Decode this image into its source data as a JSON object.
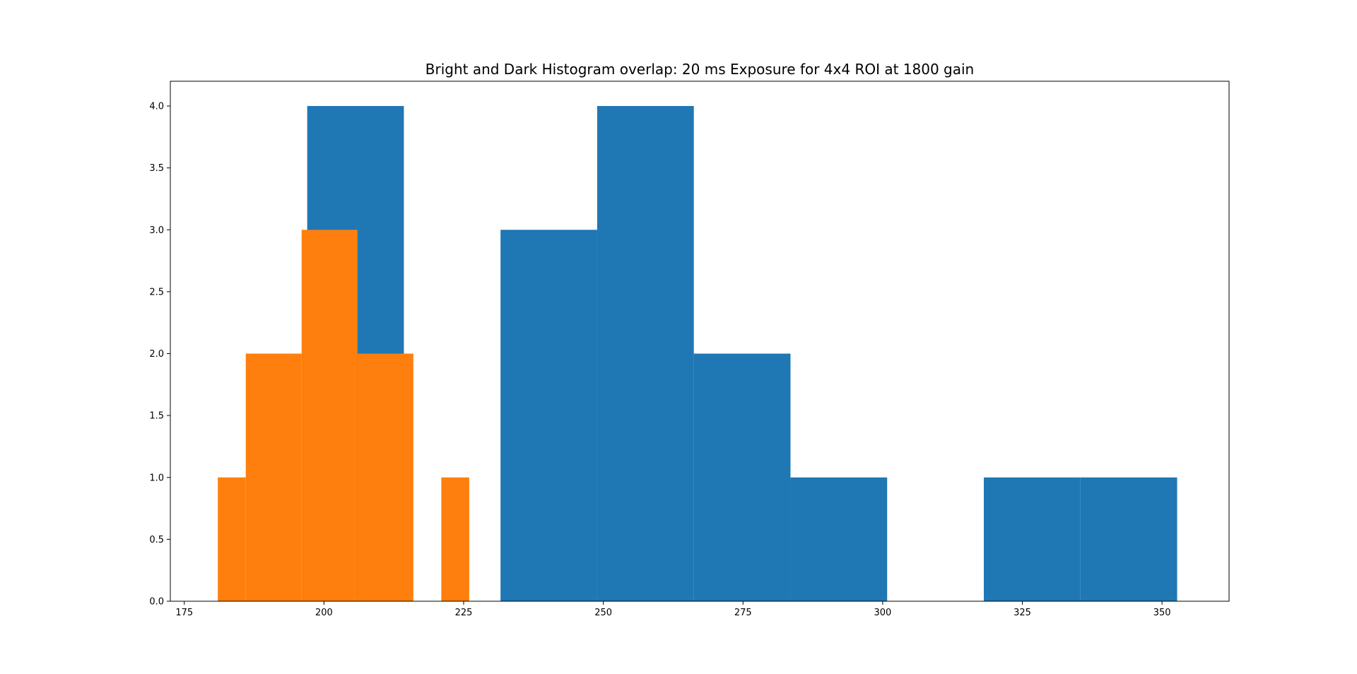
{
  "chart_data": {
    "type": "bar",
    "title": "Bright and Dark Histogram overlap: 20 ms Exposure for 4x4 ROI at 1800 gain",
    "xlabel": "",
    "ylabel": "",
    "xlim": [
      172.5,
      362
    ],
    "ylim": [
      0,
      4.2
    ],
    "grid": false,
    "xticks": [
      {
        "value": 175,
        "label": "175"
      },
      {
        "value": 200,
        "label": "200"
      },
      {
        "value": 225,
        "label": "225"
      },
      {
        "value": 250,
        "label": "250"
      },
      {
        "value": 275,
        "label": "275"
      },
      {
        "value": 300,
        "label": "300"
      },
      {
        "value": 325,
        "label": "325"
      },
      {
        "value": 350,
        "label": "350"
      }
    ],
    "yticks": [
      {
        "value": 0.0,
        "label": "0.0"
      },
      {
        "value": 0.5,
        "label": "0.5"
      },
      {
        "value": 1.0,
        "label": "1.0"
      },
      {
        "value": 1.5,
        "label": "1.5"
      },
      {
        "value": 2.0,
        "label": "2.0"
      },
      {
        "value": 2.5,
        "label": "2.5"
      },
      {
        "value": 3.0,
        "label": "3.0"
      },
      {
        "value": 3.5,
        "label": "3.5"
      },
      {
        "value": 4.0,
        "label": "4.0"
      }
    ],
    "series": [
      {
        "color": "#1f77b4",
        "bin_edges": [
          197.0,
          214.3,
          231.6,
          248.9,
          266.2,
          283.5,
          300.8,
          318.1,
          335.4,
          352.7
        ],
        "counts": [
          4,
          0,
          3,
          4,
          2,
          1,
          0,
          1,
          1
        ]
      },
      {
        "color": "#ff7f0e",
        "bin_edges": [
          181.0,
          186.0,
          196.0,
          206.0,
          216.0,
          221.0,
          226.0
        ],
        "counts": [
          1,
          2,
          3,
          2,
          0,
          1
        ]
      }
    ]
  }
}
